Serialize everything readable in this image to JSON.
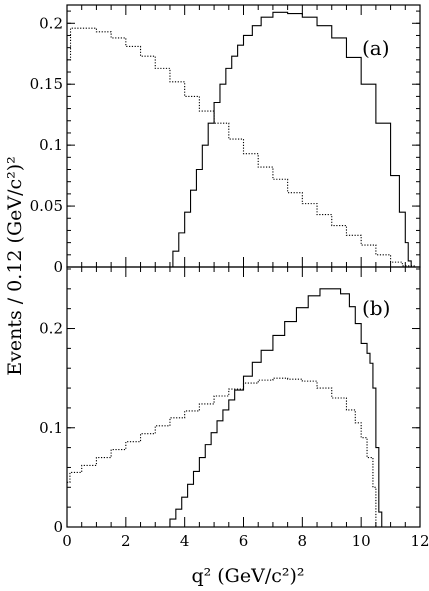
{
  "chart_data": {
    "type": "line",
    "ylabel": "Events / 0.12 (GeV/c²)²",
    "xlabel": "q² (GeV/c²)²",
    "xlim": [
      0,
      12
    ],
    "x_ticks": [
      "0",
      "2",
      "4",
      "6",
      "8",
      "10",
      "12"
    ],
    "panels": [
      {
        "label": "(a)",
        "ylim": [
          0,
          0.215
        ],
        "y_ticks": [
          "0",
          "0.05",
          "0.1",
          "0.15",
          "0.2"
        ],
        "y_tick_values": [
          0,
          0.05,
          0.1,
          0.15,
          0.2
        ],
        "series": [
          {
            "style": "solid",
            "x": [
              0,
              3.4,
              3.6,
              3.8,
              4.0,
              4.2,
              4.4,
              4.6,
              4.8,
              5.0,
              5.2,
              5.4,
              5.6,
              5.8,
              6.0,
              6.3,
              6.6,
              7.0,
              7.5,
              8.0,
              8.5,
              9.0,
              9.5,
              10.0,
              10.5,
              11.0,
              11.3,
              11.5,
              11.6,
              11.7
            ],
            "y": [
              0,
              0.0,
              0.013,
              0.028,
              0.045,
              0.063,
              0.08,
              0.1,
              0.118,
              0.135,
              0.15,
              0.163,
              0.173,
              0.182,
              0.19,
              0.198,
              0.205,
              0.209,
              0.208,
              0.205,
              0.198,
              0.188,
              0.172,
              0.15,
              0.118,
              0.075,
              0.045,
              0.02,
              0.005,
              0.0
            ]
          },
          {
            "style": "dotted",
            "x": [
              0,
              0.12,
              0.5,
              1.0,
              1.5,
              2.0,
              2.5,
              3.0,
              3.5,
              4.0,
              4.5,
              5.0,
              5.5,
              6.0,
              6.5,
              7.0,
              7.5,
              8.0,
              8.5,
              9.0,
              9.5,
              10.0,
              10.5,
              11.0,
              11.4,
              11.8
            ],
            "y": [
              0.17,
              0.196,
              0.196,
              0.193,
              0.188,
              0.181,
              0.173,
              0.163,
              0.152,
              0.14,
              0.128,
              0.118,
              0.105,
              0.093,
              0.082,
              0.072,
              0.061,
              0.052,
              0.043,
              0.034,
              0.026,
              0.018,
              0.01,
              0.004,
              0.001,
              0.0
            ]
          }
        ]
      },
      {
        "label": "(b)",
        "ylim": [
          0,
          0.262
        ],
        "y_ticks": [
          "0",
          "0.1",
          "0.2"
        ],
        "y_tick_values": [
          0,
          0.1,
          0.2
        ],
        "series": [
          {
            "style": "solid",
            "x": [
              0,
              3.3,
              3.5,
              3.7,
              3.9,
              4.1,
              4.3,
              4.5,
              4.7,
              4.9,
              5.1,
              5.3,
              5.5,
              5.7,
              6.0,
              6.3,
              6.6,
              7.0,
              7.4,
              7.8,
              8.2,
              8.6,
              9.0,
              9.3,
              9.6,
              9.8,
              10.0,
              10.2,
              10.3,
              10.4,
              10.5,
              10.6,
              10.7
            ],
            "y": [
              0,
              0.0,
              0.008,
              0.018,
              0.03,
              0.043,
              0.056,
              0.07,
              0.083,
              0.095,
              0.107,
              0.118,
              0.128,
              0.138,
              0.152,
              0.166,
              0.178,
              0.193,
              0.207,
              0.221,
              0.233,
              0.24,
              0.24,
              0.235,
              0.222,
              0.205,
              0.185,
              0.175,
              0.165,
              0.14,
              0.08,
              0.015,
              0.0
            ]
          },
          {
            "style": "dotted",
            "x": [
              0,
              0.1,
              0.5,
              1.0,
              1.5,
              2.0,
              2.5,
              3.0,
              3.5,
              4.0,
              4.5,
              5.0,
              5.5,
              6.0,
              6.5,
              7.0,
              7.5,
              8.0,
              8.5,
              9.0,
              9.5,
              9.8,
              10.0,
              10.2,
              10.4,
              10.5
            ],
            "y": [
              0.045,
              0.055,
              0.062,
              0.07,
              0.078,
              0.086,
              0.094,
              0.102,
              0.11,
              0.117,
              0.124,
              0.132,
              0.139,
              0.145,
              0.148,
              0.15,
              0.149,
              0.147,
              0.14,
              0.13,
              0.118,
              0.105,
              0.09,
              0.07,
              0.04,
              0.0
            ]
          }
        ]
      }
    ]
  }
}
